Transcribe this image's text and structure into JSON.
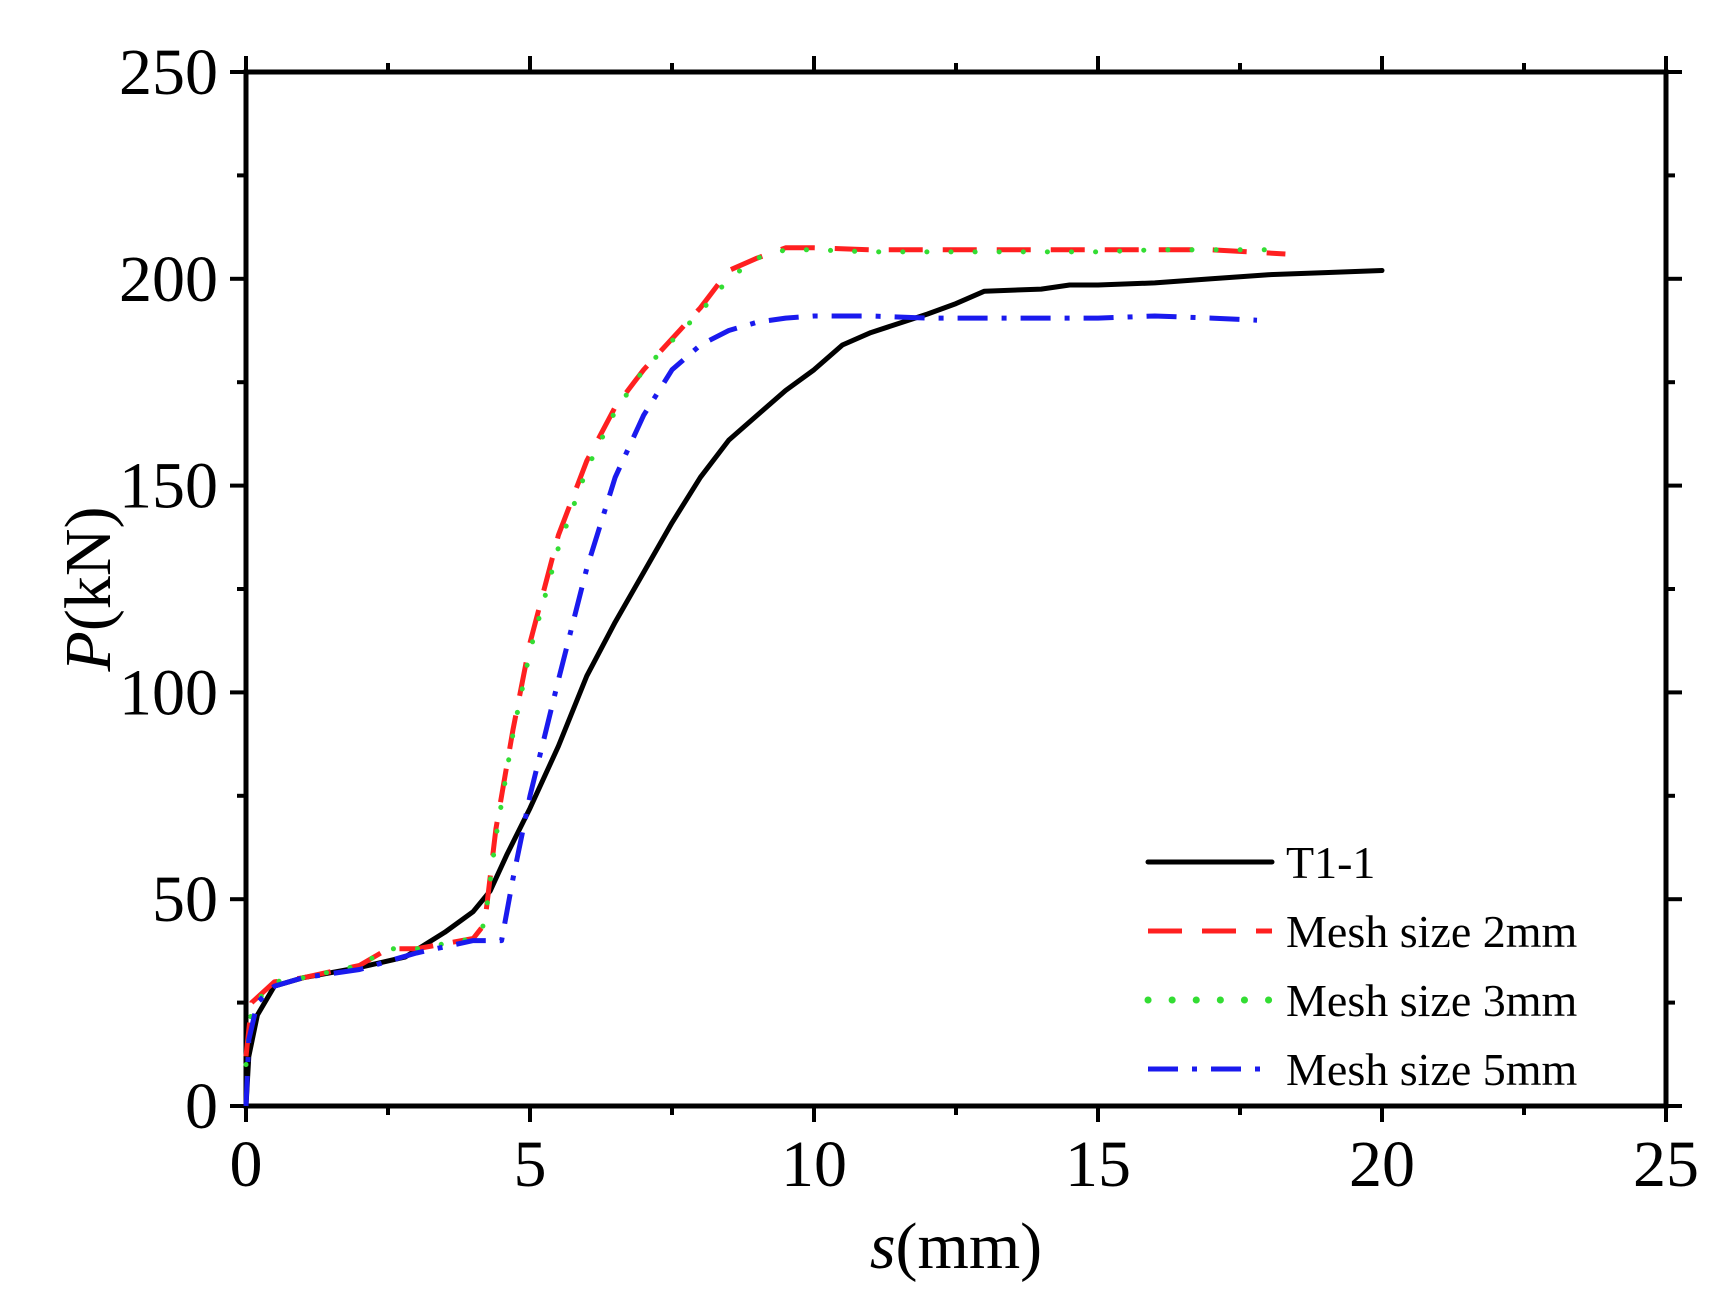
{
  "chart_data": {
    "type": "line",
    "title": "",
    "xlabel": {
      "italic": "s",
      "unit": "(mm)"
    },
    "ylabel": {
      "italic": "P",
      "unit": "(kN)"
    },
    "xlim": [
      0,
      25
    ],
    "ylim": [
      0,
      250
    ],
    "xticks": [
      0,
      5,
      10,
      15,
      20,
      25
    ],
    "yticks": [
      0,
      50,
      100,
      150,
      200,
      250
    ],
    "xtick_labels": [
      "0",
      "5",
      "10",
      "15",
      "20",
      "25"
    ],
    "ytick_labels": [
      "0",
      "50",
      "100",
      "150",
      "200",
      "250"
    ],
    "x_minor_step": 2.5,
    "y_minor_step": 25,
    "grid": false,
    "legend_position": "bottom-right",
    "series": [
      {
        "name": "T1-1",
        "color": "#000000",
        "style": "solid",
        "points": [
          [
            0,
            0
          ],
          [
            0.05,
            12
          ],
          [
            0.2,
            22
          ],
          [
            0.5,
            29
          ],
          [
            1,
            31
          ],
          [
            2,
            33.5
          ],
          [
            2.8,
            36
          ],
          [
            3.5,
            42
          ],
          [
            4,
            47
          ],
          [
            4.3,
            52
          ],
          [
            4.6,
            61
          ],
          [
            5,
            72
          ],
          [
            5.5,
            87
          ],
          [
            6,
            104
          ],
          [
            6.5,
            117
          ],
          [
            7,
            129
          ],
          [
            7.5,
            141
          ],
          [
            8,
            152
          ],
          [
            8.5,
            161
          ],
          [
            9,
            167
          ],
          [
            9.5,
            173
          ],
          [
            10,
            178
          ],
          [
            10.5,
            184
          ],
          [
            11,
            187
          ],
          [
            12,
            191.5
          ],
          [
            12.5,
            194
          ],
          [
            13,
            197
          ],
          [
            14,
            197.5
          ],
          [
            14.5,
            198.5
          ],
          [
            15,
            198.5
          ],
          [
            16,
            199
          ],
          [
            17,
            200
          ],
          [
            18,
            201
          ],
          [
            19,
            201.5
          ],
          [
            20,
            202
          ]
        ]
      },
      {
        "name": "Mesh size 2mm",
        "color": "#ff2020",
        "style": "dashed",
        "points": [
          [
            0,
            12
          ],
          [
            0.1,
            25
          ],
          [
            0.5,
            30
          ],
          [
            1,
            31
          ],
          [
            2,
            34
          ],
          [
            2.5,
            38
          ],
          [
            3,
            38
          ],
          [
            4,
            40.5
          ],
          [
            4.2,
            44
          ],
          [
            4.4,
            67
          ],
          [
            4.7,
            91
          ],
          [
            5,
            112
          ],
          [
            5.5,
            138
          ],
          [
            6,
            156
          ],
          [
            6.5,
            169
          ],
          [
            7,
            178
          ],
          [
            8,
            193
          ],
          [
            8.5,
            202
          ],
          [
            9,
            205
          ],
          [
            9.5,
            207.5
          ],
          [
            10,
            207.5
          ],
          [
            11,
            207
          ],
          [
            12,
            207
          ],
          [
            13,
            207
          ],
          [
            14,
            207
          ],
          [
            15,
            207
          ],
          [
            16,
            207
          ],
          [
            17,
            207
          ],
          [
            18.3,
            206
          ]
        ]
      },
      {
        "name": "Mesh size 3mm",
        "color": "#33dd33",
        "style": "dotted",
        "points": [
          [
            0,
            10
          ],
          [
            0.1,
            24
          ],
          [
            0.5,
            30
          ],
          [
            1,
            31
          ],
          [
            2,
            34
          ],
          [
            2.5,
            38
          ],
          [
            3,
            38
          ],
          [
            4,
            40.5
          ],
          [
            4.2,
            44
          ],
          [
            4.4,
            65
          ],
          [
            4.7,
            90
          ],
          [
            5,
            110
          ],
          [
            5.5,
            135
          ],
          [
            6,
            154
          ],
          [
            6.5,
            168
          ],
          [
            7,
            178
          ],
          [
            8,
            192
          ],
          [
            8.5,
            200
          ],
          [
            9,
            205
          ],
          [
            9.5,
            207
          ],
          [
            10,
            207
          ],
          [
            11,
            206.5
          ],
          [
            12,
            206.5
          ],
          [
            13,
            206.5
          ],
          [
            14,
            206.5
          ],
          [
            15,
            206.5
          ],
          [
            16,
            207
          ],
          [
            17,
            207
          ],
          [
            18.3,
            207
          ]
        ]
      },
      {
        "name": "Mesh size 5mm",
        "color": "#1a1aee",
        "style": "dashdot",
        "points": [
          [
            0,
            0
          ],
          [
            0.05,
            16
          ],
          [
            0.2,
            25
          ],
          [
            0.5,
            29
          ],
          [
            1,
            31
          ],
          [
            2,
            33
          ],
          [
            3,
            37
          ],
          [
            4,
            40
          ],
          [
            4.5,
            40
          ],
          [
            4.7,
            55
          ],
          [
            5,
            75
          ],
          [
            5.5,
            103
          ],
          [
            6,
            130
          ],
          [
            6.5,
            152
          ],
          [
            7,
            167
          ],
          [
            7.5,
            178
          ],
          [
            8,
            184
          ],
          [
            8.5,
            187.5
          ],
          [
            9,
            189.5
          ],
          [
            9.5,
            190.5
          ],
          [
            10,
            191
          ],
          [
            11,
            191
          ],
          [
            12,
            190.5
          ],
          [
            13,
            190.5
          ],
          [
            14,
            190.5
          ],
          [
            15,
            190.5
          ],
          [
            16,
            191
          ],
          [
            17,
            190.5
          ],
          [
            17.8,
            190
          ]
        ]
      }
    ]
  }
}
